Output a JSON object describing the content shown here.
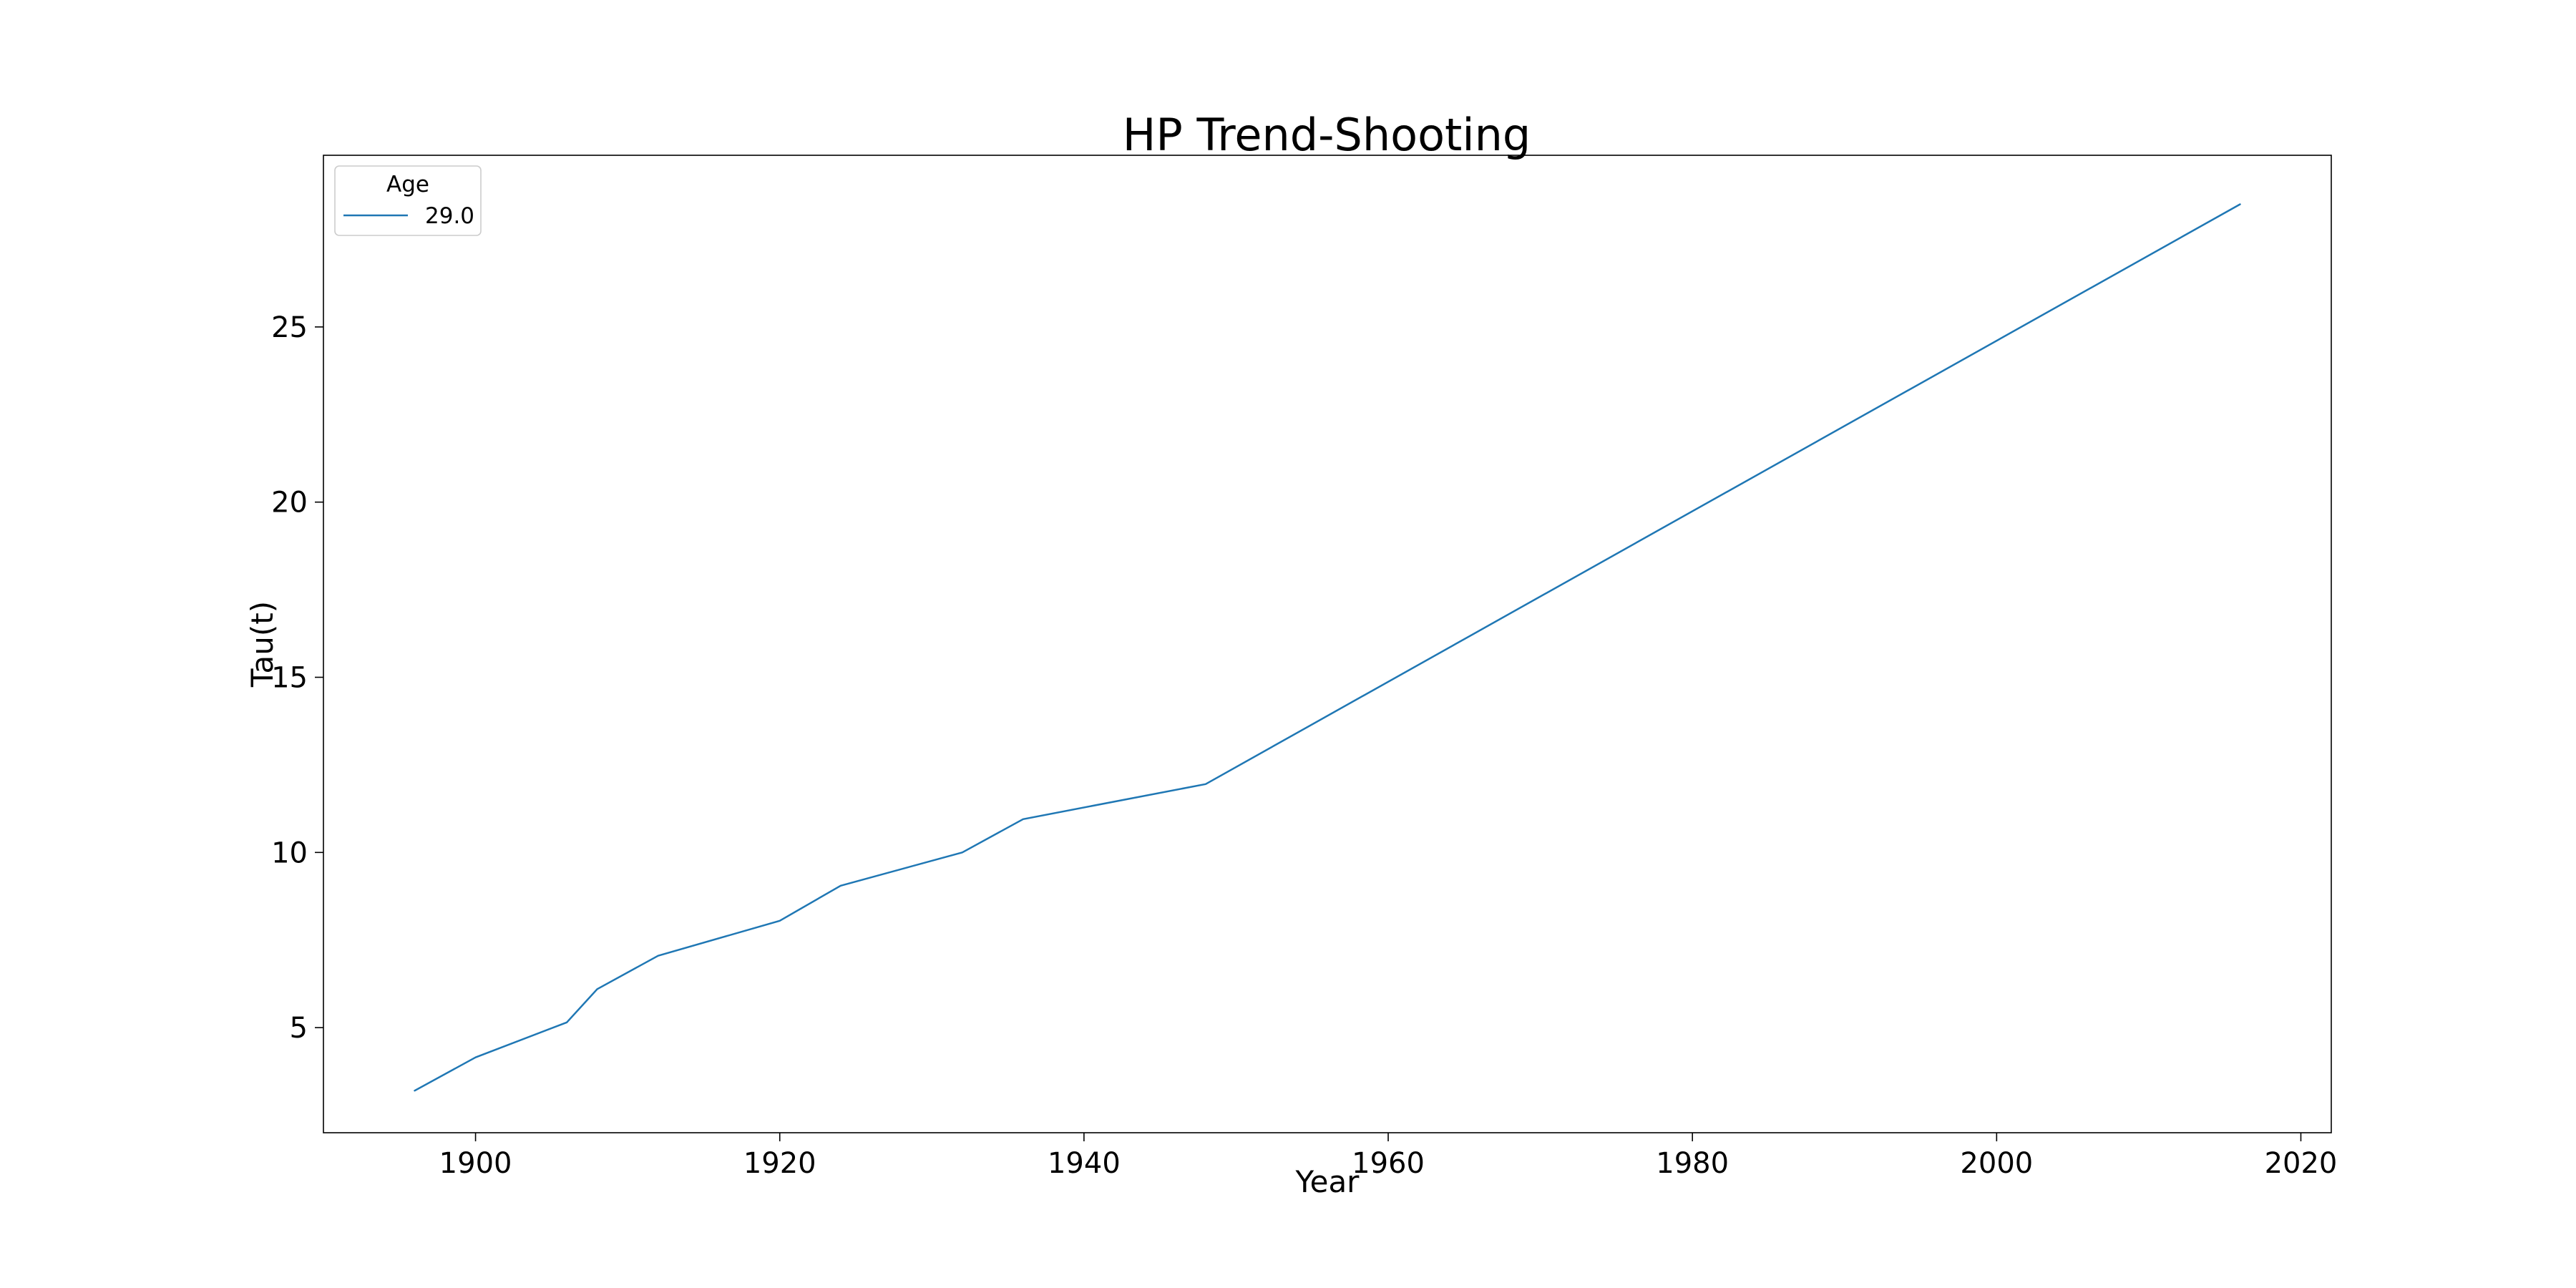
{
  "chart_data": {
    "type": "line",
    "title": "HP Trend-Shooting",
    "xlabel": "Year",
    "ylabel": "Tau(t)",
    "xlim": [
      1890,
      2022
    ],
    "ylim": [
      2.0,
      29.9
    ],
    "xticks": [
      1900,
      1920,
      1940,
      1960,
      1980,
      2000,
      2020
    ],
    "xtick_labels": [
      "1900",
      "1920",
      "1940",
      "1960",
      "1980",
      "2000",
      "2020"
    ],
    "yticks": [
      5,
      10,
      15,
      20,
      25
    ],
    "ytick_labels": [
      "5",
      "10",
      "15",
      "20",
      "25"
    ],
    "grid": false,
    "legend": {
      "title": "Age",
      "placement": "top-left",
      "entries": [
        "29.0"
      ]
    },
    "series": [
      {
        "name": "29.0",
        "color": "#1f77b4",
        "x": [
          1896,
          1900,
          1906,
          1908,
          1912,
          1920,
          1924,
          1932,
          1936,
          1948,
          2016
        ],
        "y": [
          3.2,
          4.15,
          5.15,
          6.1,
          7.05,
          8.05,
          9.05,
          10.0,
          10.95,
          11.95,
          28.5
        ]
      }
    ]
  }
}
